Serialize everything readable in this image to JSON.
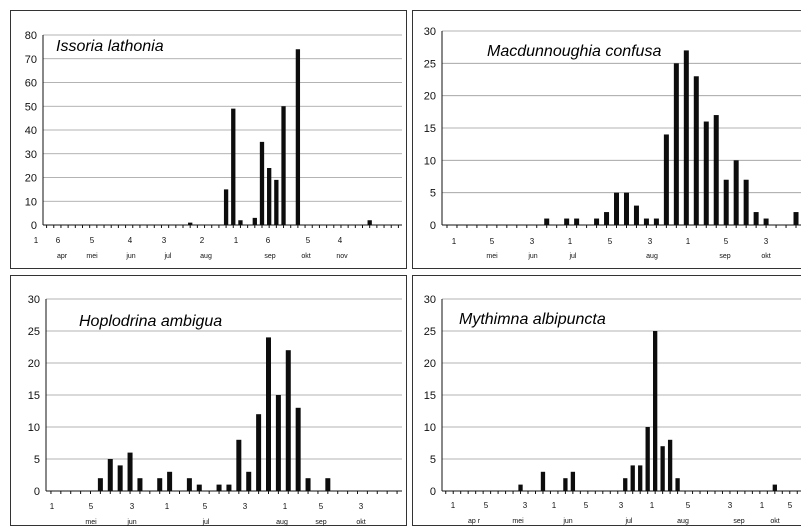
{
  "chart_data": [
    {
      "type": "bar",
      "title": "Issoria lathonia",
      "ylim": [
        0,
        80
      ],
      "yticks": [
        0,
        10,
        20,
        30,
        40,
        50,
        60,
        70,
        80
      ],
      "grid": true,
      "xtick_labels": [
        "1",
        "6",
        "5",
        "4",
        "3",
        "2",
        "1",
        "6",
        "5",
        "4"
      ],
      "month_labels": [
        "apr",
        "mei",
        "jun",
        "jul",
        "aug",
        "sep",
        "okt",
        "nov"
      ],
      "values": [
        0,
        0,
        0,
        0,
        0,
        0,
        0,
        0,
        0,
        0,
        0,
        0,
        0,
        0,
        0,
        0,
        0,
        0,
        0,
        0,
        1,
        0,
        0,
        0,
        0,
        15,
        49,
        2,
        0,
        3,
        35,
        24,
        19,
        50,
        0,
        74,
        0,
        0,
        0,
        0,
        0,
        0,
        0,
        0,
        0,
        2,
        0,
        0,
        0,
        0
      ]
    },
    {
      "type": "bar",
      "title": "Macdunnoughia confusa",
      "ylim": [
        0,
        30
      ],
      "yticks": [
        0,
        5,
        10,
        15,
        20,
        25,
        30
      ],
      "grid": true,
      "xtick_labels": [
        "1",
        "5",
        "3",
        "1",
        "5",
        "3",
        "1",
        "5",
        "3"
      ],
      "month_labels": [
        "mei",
        "jun",
        "jul",
        "aug",
        "sep",
        "okt"
      ],
      "values": [
        0,
        0,
        0,
        0,
        0,
        0,
        0,
        0,
        0,
        0,
        1,
        0,
        1,
        1,
        0,
        1,
        2,
        5,
        5,
        3,
        1,
        1,
        14,
        25,
        27,
        23,
        16,
        17,
        7,
        10,
        7,
        2,
        1,
        0,
        0,
        2
      ]
    },
    {
      "type": "bar",
      "title": "Hoplodrina ambigua",
      "ylim": [
        0,
        30
      ],
      "yticks": [
        0,
        5,
        10,
        15,
        20,
        25,
        30
      ],
      "grid": true,
      "xtick_labels": [
        "1",
        "5",
        "3",
        "1",
        "5",
        "3",
        "1",
        "5",
        "3"
      ],
      "month_labels": [
        "mei",
        "jun",
        "jul",
        "aug",
        "sep",
        "okt"
      ],
      "values": [
        0,
        0,
        0,
        0,
        0,
        2,
        5,
        4,
        6,
        2,
        0,
        2,
        3,
        0,
        2,
        1,
        0,
        1,
        1,
        8,
        3,
        12,
        24,
        15,
        22,
        13,
        2,
        0,
        2,
        0,
        0,
        0,
        0,
        0,
        0,
        0
      ]
    },
    {
      "type": "bar",
      "title": "Mythimna albipuncta",
      "ylim": [
        0,
        30
      ],
      "yticks": [
        0,
        5,
        10,
        15,
        20,
        25,
        30
      ],
      "grid": true,
      "xtick_labels": [
        "1",
        "5",
        "3",
        "1",
        "5",
        "3",
        "1",
        "5",
        "3",
        "1",
        "5"
      ],
      "month_labels": [
        "ap r",
        "mei",
        "jun",
        "jul",
        "aug",
        "sep",
        "okt"
      ],
      "values": [
        0,
        0,
        0,
        0,
        0,
        0,
        0,
        0,
        0,
        0,
        1,
        0,
        0,
        3,
        0,
        0,
        2,
        3,
        0,
        0,
        0,
        0,
        0,
        0,
        2,
        4,
        4,
        10,
        25,
        7,
        8,
        2,
        0,
        0,
        0,
        0,
        0,
        0,
        0,
        0,
        0,
        0,
        0,
        0,
        1,
        0,
        0,
        0
      ]
    }
  ]
}
